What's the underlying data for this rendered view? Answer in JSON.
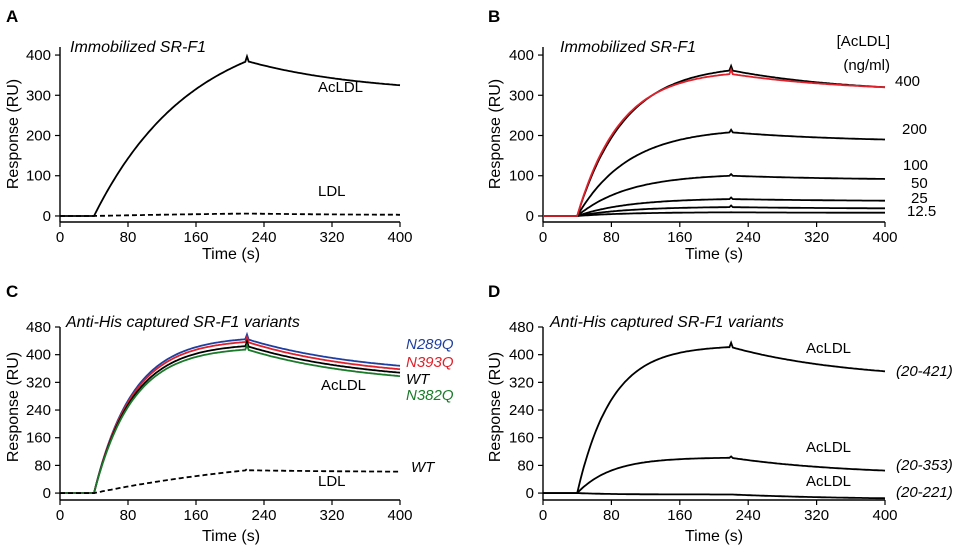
{
  "colors": {
    "black": "#000000",
    "red": "#e0202a",
    "blue": "#1f3fa0",
    "green": "#1a7a2a"
  },
  "chart_data": [
    {
      "panel": "A",
      "type": "line",
      "title": "Immobilized SR-F1",
      "xlabel": "Time (s)",
      "ylabel": "Response (RU)",
      "xlim": [
        0,
        400
      ],
      "ylim": [
        -15,
        420
      ],
      "xticks": [
        0,
        80,
        160,
        240,
        320,
        400
      ],
      "yticks": [
        0,
        100,
        200,
        300,
        400
      ],
      "injection_start": 40,
      "injection_end": 220,
      "series": [
        {
          "name": "AcLDL",
          "label": "AcLDL",
          "peak": 385,
          "end": 325,
          "tau_on": 115,
          "color": "#000000",
          "dash": false
        },
        {
          "name": "LDL",
          "label": "LDL",
          "peak": 6,
          "end": 3,
          "tau_on": 300,
          "color": "#000000",
          "dash": true
        }
      ]
    },
    {
      "panel": "B",
      "type": "line",
      "title": "Immobilized SR-F1",
      "legend_title": "[AcLDL]",
      "legend_units": "(ng/ml)",
      "xlabel": "Time (s)",
      "ylabel": "Response (RU)",
      "xlim": [
        0,
        400
      ],
      "ylim": [
        -15,
        420
      ],
      "xticks": [
        0,
        80,
        160,
        240,
        320,
        400
      ],
      "yticks": [
        0,
        100,
        200,
        300,
        400
      ],
      "injection_start": 40,
      "injection_end": 220,
      "series": [
        {
          "name": "400",
          "label": "400",
          "peak": 362,
          "end": 320,
          "tau_on": 55,
          "color": "#000000"
        },
        {
          "name": "200",
          "label": "200",
          "peak": 208,
          "end": 190,
          "tau_on": 60,
          "color": "#000000"
        },
        {
          "name": "100",
          "label": "100",
          "peak": 100,
          "end": 92,
          "tau_on": 60,
          "color": "#000000"
        },
        {
          "name": "50",
          "label": "50",
          "peak": 42,
          "end": 38,
          "tau_on": 60,
          "color": "#000000"
        },
        {
          "name": "25",
          "label": "25",
          "peak": 22,
          "end": 19,
          "tau_on": 60,
          "color": "#000000"
        },
        {
          "name": "12.5",
          "label": "12.5",
          "peak": 9,
          "end": 8,
          "tau_on": 60,
          "color": "#000000"
        }
      ],
      "fit": {
        "name": "fit-400",
        "peak": 353,
        "end": 320,
        "tau_on": 50,
        "color": "#e0202a"
      }
    },
    {
      "panel": "C",
      "type": "line",
      "title": "Anti-His captured SR-F1 variants",
      "xlabel": "Time (s)",
      "ylabel": "Response (RU)",
      "xlim": [
        0,
        400
      ],
      "ylim": [
        -20,
        480
      ],
      "xticks": [
        0,
        80,
        160,
        240,
        320,
        400
      ],
      "yticks": [
        0,
        80,
        160,
        240,
        320,
        400,
        480
      ],
      "injection_start": 40,
      "injection_end": 220,
      "series": [
        {
          "name": "N289Q",
          "label": "N289Q",
          "peak": 445,
          "end": 368,
          "tau_on": 45,
          "color": "#1f3fa0",
          "dash": false
        },
        {
          "name": "N393Q",
          "label": "N393Q",
          "peak": 437,
          "end": 358,
          "tau_on": 45,
          "color": "#e0202a",
          "dash": false
        },
        {
          "name": "WT",
          "label": "WT",
          "peak": 425,
          "end": 348,
          "tau_on": 45,
          "color": "#000000",
          "dash": false
        },
        {
          "name": "N382Q",
          "label": "N382Q",
          "peak": 415,
          "end": 338,
          "tau_on": 45,
          "color": "#1a7a2a",
          "dash": false
        },
        {
          "name": "LDL-WT",
          "label": "WT",
          "peak": 66,
          "end": 62,
          "tau_on": 250,
          "color": "#000000",
          "dash": true
        }
      ],
      "annotations": {
        "acldl": "AcLDL",
        "ldl": "LDL"
      }
    },
    {
      "panel": "D",
      "type": "line",
      "title": "Anti-His captured SR-F1 variants",
      "xlabel": "Time (s)",
      "ylabel": "Response (RU)",
      "xlim": [
        0,
        400
      ],
      "ylim": [
        -20,
        480
      ],
      "xticks": [
        0,
        80,
        160,
        240,
        320,
        400
      ],
      "yticks": [
        0,
        80,
        160,
        240,
        320,
        400,
        480
      ],
      "injection_start": 40,
      "injection_end": 220,
      "series": [
        {
          "name": "20-421",
          "label": "(20-421)",
          "ann": "AcLDL",
          "peak": 422,
          "end": 352,
          "tau_on": 40,
          "color": "#000000"
        },
        {
          "name": "20-353",
          "label": "(20-353)",
          "ann": "AcLDL",
          "peak": 102,
          "end": 65,
          "tau_on": 40,
          "color": "#000000"
        },
        {
          "name": "20-221",
          "label": "(20-221)",
          "ann": "AcLDL",
          "peak": -4,
          "end": -15,
          "tau_on": 40,
          "color": "#000000"
        }
      ]
    }
  ]
}
